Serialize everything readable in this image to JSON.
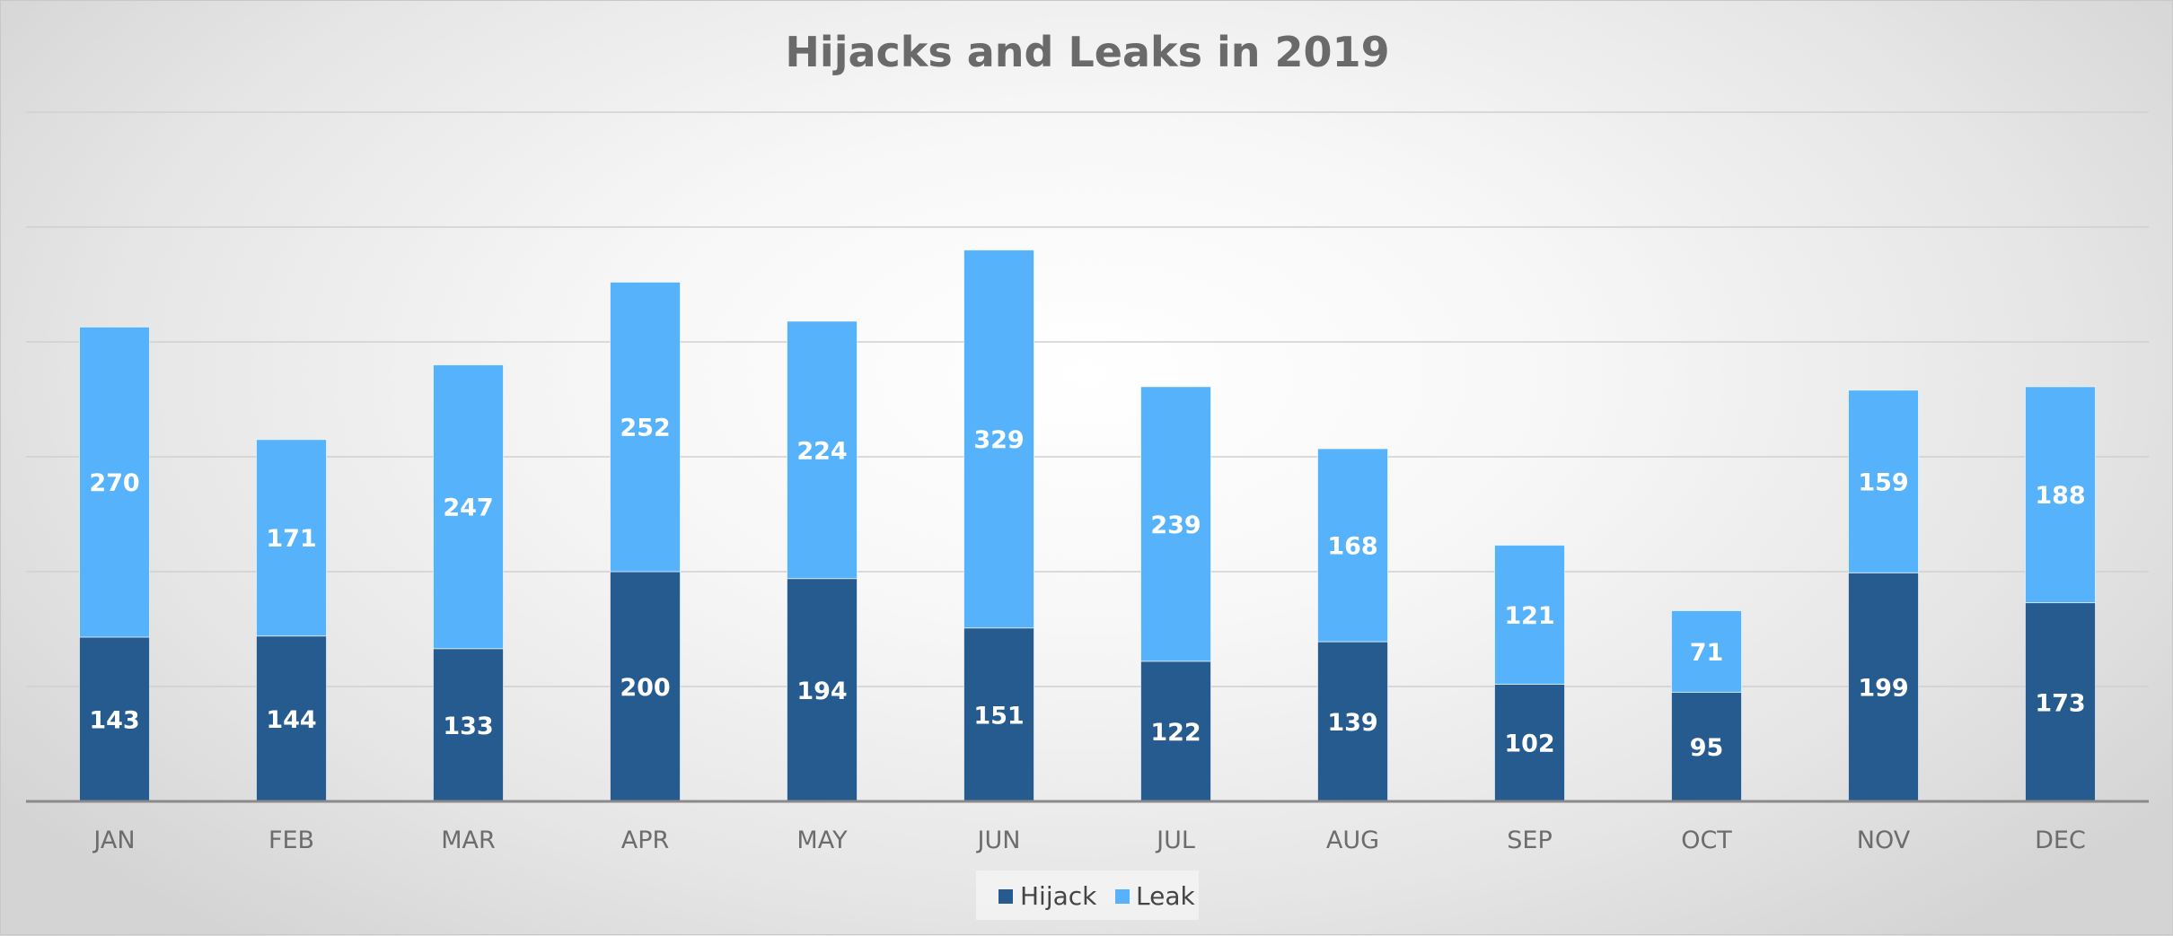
{
  "chart_data": {
    "type": "bar",
    "stacked": true,
    "title": "Hijacks and Leaks in 2019",
    "xlabel": "",
    "ylabel": "",
    "categories": [
      "JAN",
      "FEB",
      "MAR",
      "APR",
      "MAY",
      "JUN",
      "JUL",
      "AUG",
      "SEP",
      "OCT",
      "NOV",
      "DEC"
    ],
    "series": [
      {
        "name": "Hijack",
        "color": "#255b8e",
        "values": [
          143,
          144,
          133,
          200,
          194,
          151,
          122,
          139,
          102,
          95,
          199,
          173
        ]
      },
      {
        "name": "Leak",
        "color": "#56b3fb",
        "values": [
          270,
          171,
          247,
          252,
          224,
          329,
          239,
          168,
          121,
          71,
          159,
          188
        ]
      }
    ],
    "ylim": [
      0,
      600
    ],
    "grid": true,
    "y_axis_labels_shown": false,
    "data_labels": true,
    "legend_position": "bottom"
  }
}
